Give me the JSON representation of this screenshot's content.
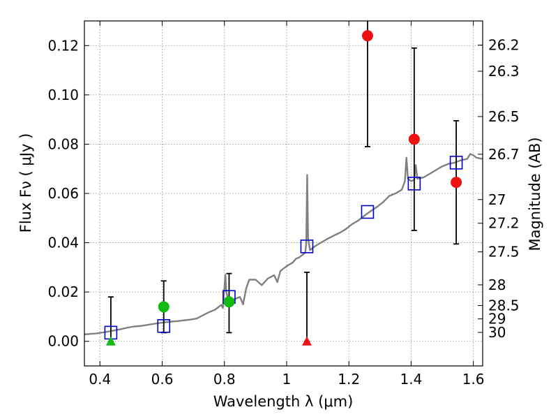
{
  "chart_data": {
    "type": "scatter",
    "xlabel": "Wavelength  λ (μm)",
    "ylabel": "Flux  Fν  ( μJy )",
    "y2label": "Magnitude (AB)",
    "xlim": [
      0.35,
      1.63
    ],
    "ylim": [
      -0.01,
      0.13
    ],
    "grid": true,
    "x_ticks": [
      0.4,
      0.6,
      0.8,
      1.0,
      1.2,
      1.4,
      1.6
    ],
    "x_tick_labels": [
      "0.4",
      "0.6",
      "0.8",
      "1",
      "1.2",
      "1.4",
      "1.6"
    ],
    "y_ticks": [
      0.0,
      0.02,
      0.04,
      0.06,
      0.08,
      0.1,
      0.12
    ],
    "y_tick_labels": [
      "0.00",
      "0.02",
      "0.04",
      "0.06",
      "0.08",
      "0.10",
      "0.12"
    ],
    "mag_ticks": [
      {
        "label": "26.2",
        "flux": 0.1202
      },
      {
        "label": "26.3",
        "flux": 0.1096
      },
      {
        "label": "26.5",
        "flux": 0.0912
      },
      {
        "label": "26.7",
        "flux": 0.0759
      },
      {
        "label": "27",
        "flux": 0.0575
      },
      {
        "label": "27.2",
        "flux": 0.0479
      },
      {
        "label": "27.5",
        "flux": 0.0363
      },
      {
        "label": "28",
        "flux": 0.0229
      },
      {
        "label": "28.5",
        "flux": 0.0145
      },
      {
        "label": "29",
        "flux": 0.0091
      },
      {
        "label": "30",
        "flux": 0.0036
      }
    ],
    "colors": {
      "spectrum": "#808080",
      "model_photometry": "#0000cc",
      "green_points": "#11bb11",
      "red_points": "#ee1111",
      "error_bars": "#000000",
      "grid": "#888888"
    },
    "series": [
      {
        "type": "line",
        "points": [
          [
            0.35,
            0.0028
          ],
          [
            0.37,
            0.003
          ],
          [
            0.39,
            0.0032
          ],
          [
            0.41,
            0.0036
          ],
          [
            0.43,
            0.004
          ],
          [
            0.45,
            0.0045
          ],
          [
            0.47,
            0.005
          ],
          [
            0.49,
            0.0056
          ],
          [
            0.51,
            0.006
          ],
          [
            0.53,
            0.0062
          ],
          [
            0.55,
            0.0066
          ],
          [
            0.57,
            0.007
          ],
          [
            0.59,
            0.0074
          ],
          [
            0.61,
            0.0077
          ],
          [
            0.63,
            0.008
          ],
          [
            0.65,
            0.0082
          ],
          [
            0.67,
            0.0085
          ],
          [
            0.69,
            0.0088
          ],
          [
            0.71,
            0.0092
          ],
          [
            0.73,
            0.0105
          ],
          [
            0.75,
            0.0118
          ],
          [
            0.77,
            0.0128
          ],
          [
            0.79,
            0.0148
          ],
          [
            0.795,
            0.0135
          ],
          [
            0.8,
            0.0215
          ],
          [
            0.803,
            0.027
          ],
          [
            0.806,
            0.02
          ],
          [
            0.81,
            0.018
          ],
          [
            0.83,
            0.017
          ],
          [
            0.85,
            0.018
          ],
          [
            0.86,
            0.015
          ],
          [
            0.87,
            0.0215
          ],
          [
            0.88,
            0.025
          ],
          [
            0.9,
            0.025
          ],
          [
            0.92,
            0.0228
          ],
          [
            0.94,
            0.0255
          ],
          [
            0.96,
            0.0268
          ],
          [
            0.97,
            0.024
          ],
          [
            0.98,
            0.0285
          ],
          [
            1.0,
            0.0305
          ],
          [
            1.02,
            0.032
          ],
          [
            1.03,
            0.0335
          ],
          [
            1.04,
            0.034
          ],
          [
            1.05,
            0.035
          ],
          [
            1.06,
            0.036
          ],
          [
            1.063,
            0.04
          ],
          [
            1.066,
            0.0675
          ],
          [
            1.069,
            0.042
          ],
          [
            1.075,
            0.037
          ],
          [
            1.09,
            0.0385
          ],
          [
            1.11,
            0.04
          ],
          [
            1.13,
            0.0415
          ],
          [
            1.15,
            0.0428
          ],
          [
            1.17,
            0.044
          ],
          [
            1.19,
            0.0455
          ],
          [
            1.21,
            0.0475
          ],
          [
            1.23,
            0.049
          ],
          [
            1.25,
            0.051
          ],
          [
            1.27,
            0.0528
          ],
          [
            1.29,
            0.0545
          ],
          [
            1.31,
            0.0565
          ],
          [
            1.33,
            0.059
          ],
          [
            1.35,
            0.06
          ],
          [
            1.37,
            0.0615
          ],
          [
            1.38,
            0.065
          ],
          [
            1.385,
            0.0745
          ],
          [
            1.39,
            0.066
          ],
          [
            1.4,
            0.065
          ],
          [
            1.41,
            0.0655
          ],
          [
            1.415,
            0.0715
          ],
          [
            1.42,
            0.066
          ],
          [
            1.44,
            0.0665
          ],
          [
            1.46,
            0.068
          ],
          [
            1.48,
            0.0695
          ],
          [
            1.5,
            0.071
          ],
          [
            1.52,
            0.072
          ],
          [
            1.54,
            0.0725
          ],
          [
            1.56,
            0.0735
          ],
          [
            1.58,
            0.074
          ],
          [
            1.59,
            0.076
          ],
          [
            1.6,
            0.0755
          ],
          [
            1.61,
            0.0745
          ],
          [
            1.63,
            0.074
          ]
        ]
      },
      {
        "type": "model_photometry",
        "marker": "open-square",
        "points": [
          [
            0.435,
            0.0035
          ],
          [
            0.605,
            0.0062
          ],
          [
            0.815,
            0.018
          ],
          [
            1.065,
            0.0385
          ],
          [
            1.26,
            0.0525
          ],
          [
            1.41,
            0.064
          ],
          [
            1.545,
            0.0725
          ]
        ]
      },
      {
        "type": "detections",
        "marker": "circle",
        "color": "green",
        "points": [
          {
            "x": 0.605,
            "y": 0.014,
            "ylo": 0.0035,
            "yhi": 0.0245
          },
          {
            "x": 0.815,
            "y": 0.016,
            "ylo": 0.0035,
            "yhi": 0.0275
          }
        ]
      },
      {
        "type": "upper_limit",
        "marker": "triangle",
        "color": "green",
        "points": [
          {
            "x": 0.435,
            "y": 0.0,
            "ylo": 0.0,
            "yhi": 0.018
          }
        ]
      },
      {
        "type": "detections",
        "marker": "circle",
        "color": "red",
        "points": [
          {
            "x": 1.26,
            "y": 0.124,
            "ylo": 0.079,
            "yhi": 0.131
          },
          {
            "x": 1.41,
            "y": 0.082,
            "ylo": 0.045,
            "yhi": 0.119
          },
          {
            "x": 1.545,
            "y": 0.0645,
            "ylo": 0.0395,
            "yhi": 0.0895
          }
        ]
      },
      {
        "type": "upper_limit",
        "marker": "triangle",
        "color": "red",
        "points": [
          {
            "x": 1.065,
            "y": 0.0,
            "ylo": 0.0,
            "yhi": 0.028
          }
        ]
      }
    ]
  }
}
